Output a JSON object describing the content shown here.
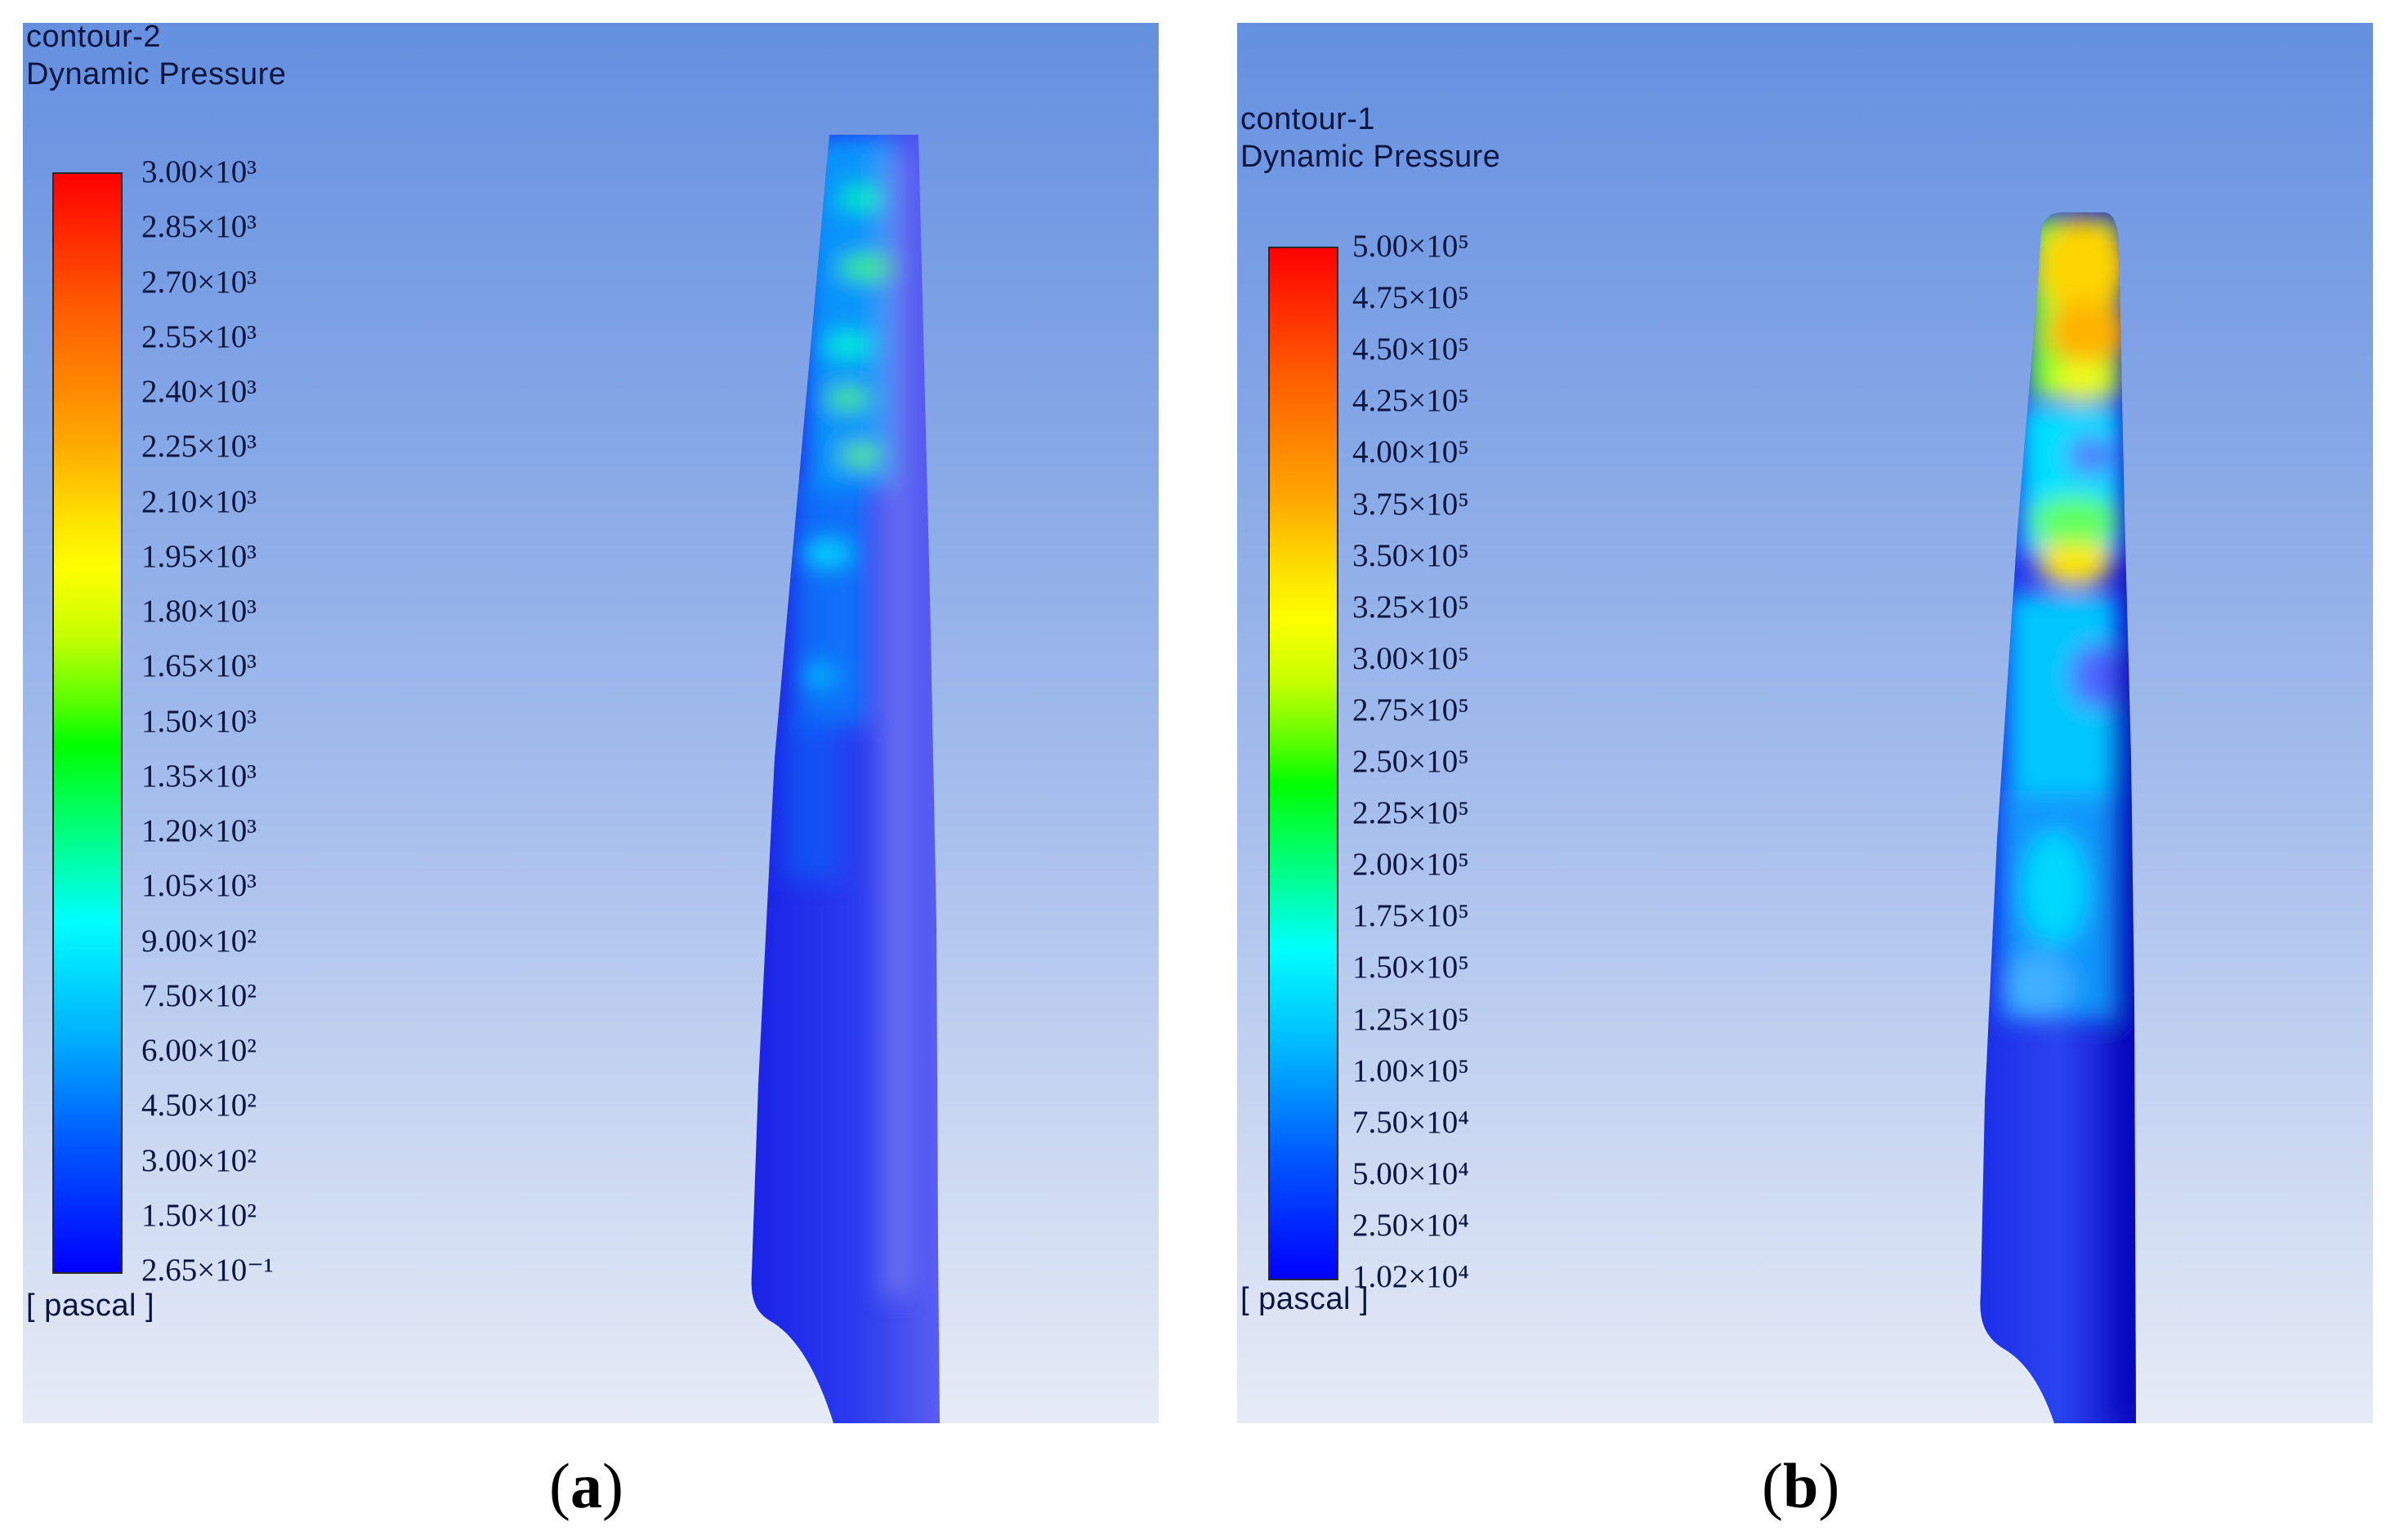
{
  "panels": [
    {
      "id": "a",
      "contour_name": "contour-2",
      "variable": "Dynamic Pressure",
      "unit": "[ pascal ]",
      "legend_ticks": [
        "3.00×10³",
        "2.85×10³",
        "2.70×10³",
        "2.55×10³",
        "2.40×10³",
        "2.25×10³",
        "2.10×10³",
        "1.95×10³",
        "1.80×10³",
        "1.65×10³",
        "1.50×10³",
        "1.35×10³",
        "1.20×10³",
        "1.05×10³",
        "9.00×10²",
        "7.50×10²",
        "6.00×10²",
        "4.50×10²",
        "3.00×10²",
        "1.50×10²",
        "2.65×10⁻¹"
      ],
      "caption": "a"
    },
    {
      "id": "b",
      "contour_name": "contour-1",
      "variable": "Dynamic Pressure",
      "unit": "[ pascal ]",
      "legend_ticks": [
        "5.00×10⁵",
        "4.75×10⁵",
        "4.50×10⁵",
        "4.25×10⁵",
        "4.00×10⁵",
        "3.75×10⁵",
        "3.50×10⁵",
        "3.25×10⁵",
        "3.00×10⁵",
        "2.75×10⁵",
        "2.50×10⁵",
        "2.25×10⁵",
        "2.00×10⁵",
        "1.75×10⁵",
        "1.50×10⁵",
        "1.25×10⁵",
        "1.00×10⁵",
        "7.50×10⁴",
        "5.00×10⁴",
        "2.50×10⁴",
        "1.02×10⁴"
      ],
      "caption": "b"
    }
  ],
  "colormap": [
    "#0000ff",
    "#005aff",
    "#00b4ff",
    "#00ffff",
    "#00ff80",
    "#00ff00",
    "#5aff00",
    "#c8ff00",
    "#ffff00",
    "#ffa500",
    "#ff5a00",
    "#ff0000"
  ],
  "background_gradient": [
    "#6590e0",
    "#e6ebf6"
  ]
}
